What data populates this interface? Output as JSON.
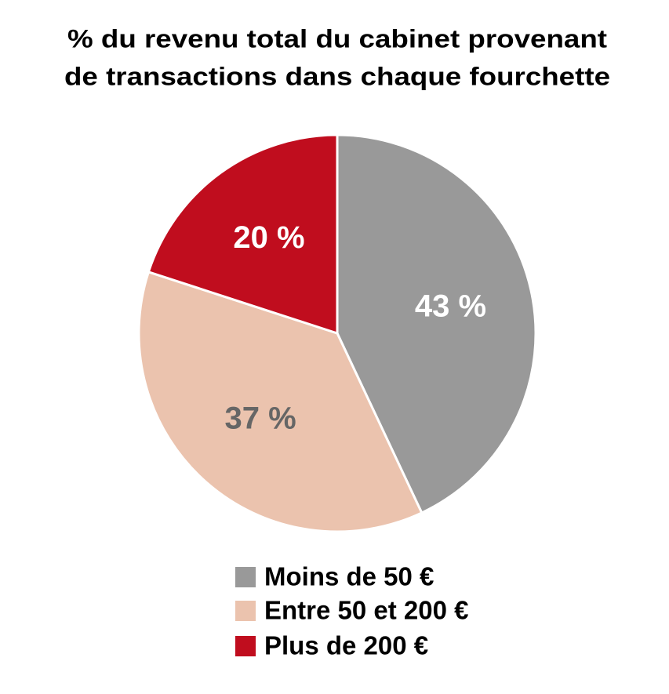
{
  "chart_data": {
    "type": "pie",
    "title": [
      "% du revenu total du cabinet provenant",
      "de transactions dans chaque fourchette"
    ],
    "categories": [
      "Moins de 50 €",
      "Entre 50 et 200 €",
      "Plus de 200 €"
    ],
    "values": [
      43,
      37,
      20
    ],
    "value_labels": [
      "43 %",
      "37 %",
      "20 %"
    ],
    "colors": [
      "#999999",
      "#ebc3ae",
      "#c00d1e"
    ],
    "legend": "bottom"
  }
}
